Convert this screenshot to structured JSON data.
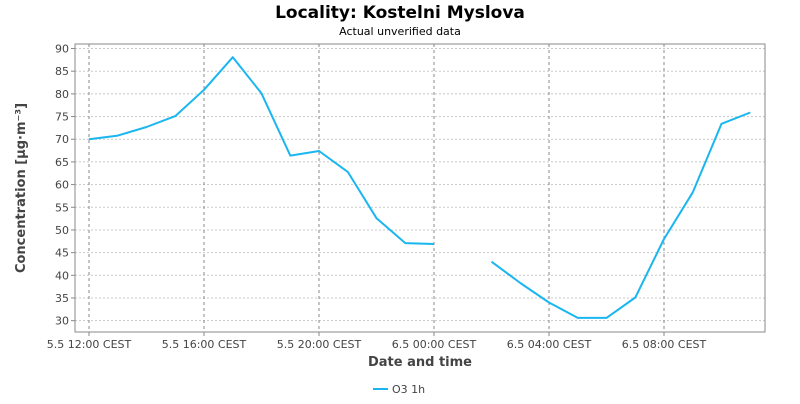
{
  "chart_data": {
    "type": "line",
    "title": "Locality: Kostelni Myslova",
    "subtitle": "Actual unverified data",
    "xlabel": "Date and time",
    "ylabel": "Concentration [µg·m⁻³]",
    "ylim": [
      27.5,
      91
    ],
    "y_ticks": [
      30,
      35,
      40,
      45,
      50,
      55,
      60,
      65,
      70,
      75,
      80,
      85,
      90
    ],
    "x_ticks": [
      "5.5 12:00 CEST",
      "5.5 16:00 CEST",
      "5.5 20:00 CEST",
      "6.5 00:00 CEST",
      "6.5 04:00 CEST",
      "6.5 08:00 CEST"
    ],
    "x_hours": [
      "5.5 12:00",
      "5.5 13:00",
      "5.5 14:00",
      "5.5 15:00",
      "5.5 16:00",
      "5.5 17:00",
      "5.5 18:00",
      "5.5 19:00",
      "5.5 20:00",
      "5.5 21:00",
      "5.5 22:00",
      "5.5 23:00",
      "6.5 00:00",
      "6.5 01:00",
      "6.5 02:00",
      "6.5 03:00",
      "6.5 04:00",
      "6.5 05:00",
      "6.5 06:00",
      "6.5 07:00",
      "6.5 08:00",
      "6.5 09:00",
      "6.5 10:00",
      "6.5 11:00"
    ],
    "grid": true,
    "legend_position": "bottom-center",
    "series": [
      {
        "name": "O3 1h",
        "color": "#1ab6f0",
        "values": [
          70.0,
          70.8,
          72.7,
          75.1,
          80.9,
          88.1,
          80.1,
          66.4,
          67.4,
          62.8,
          52.6,
          47.1,
          46.9,
          null,
          43.0,
          38.3,
          34.0,
          30.6,
          30.6,
          35.1,
          48.0,
          58.3,
          73.4,
          75.9
        ]
      }
    ]
  }
}
